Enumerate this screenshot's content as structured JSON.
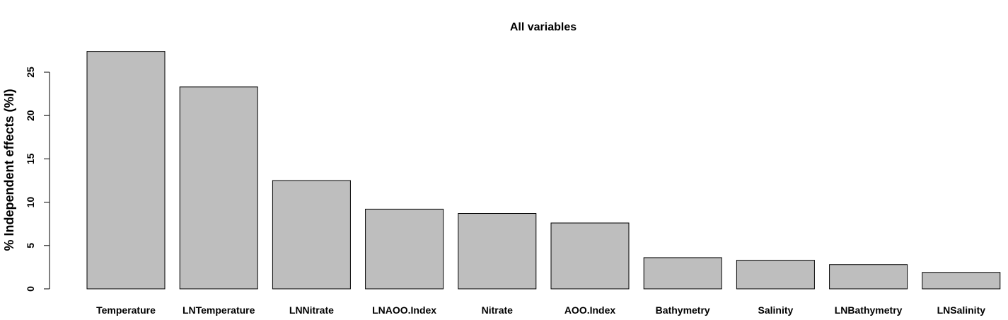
{
  "chart_data": {
    "type": "bar",
    "title": "All variables",
    "xlabel": "",
    "ylabel": "% Independent effects (%I)",
    "ylim": [
      0,
      27.5
    ],
    "yticks": [
      0,
      5,
      10,
      15,
      20,
      25
    ],
    "grid": false,
    "bar_color": "#bebebe",
    "bar_edge_color": "#000000",
    "categories": [
      "Temperature",
      "LNTemperature",
      "LNNitrate",
      "LNAOO.Index",
      "Nitrate",
      "AOO.Index",
      "Bathymetry",
      "Salinity",
      "LNBathymetry",
      "LNSalinity"
    ],
    "values": [
      27.4,
      23.3,
      12.5,
      9.2,
      8.7,
      7.6,
      3.6,
      3.3,
      2.8,
      1.9
    ]
  }
}
